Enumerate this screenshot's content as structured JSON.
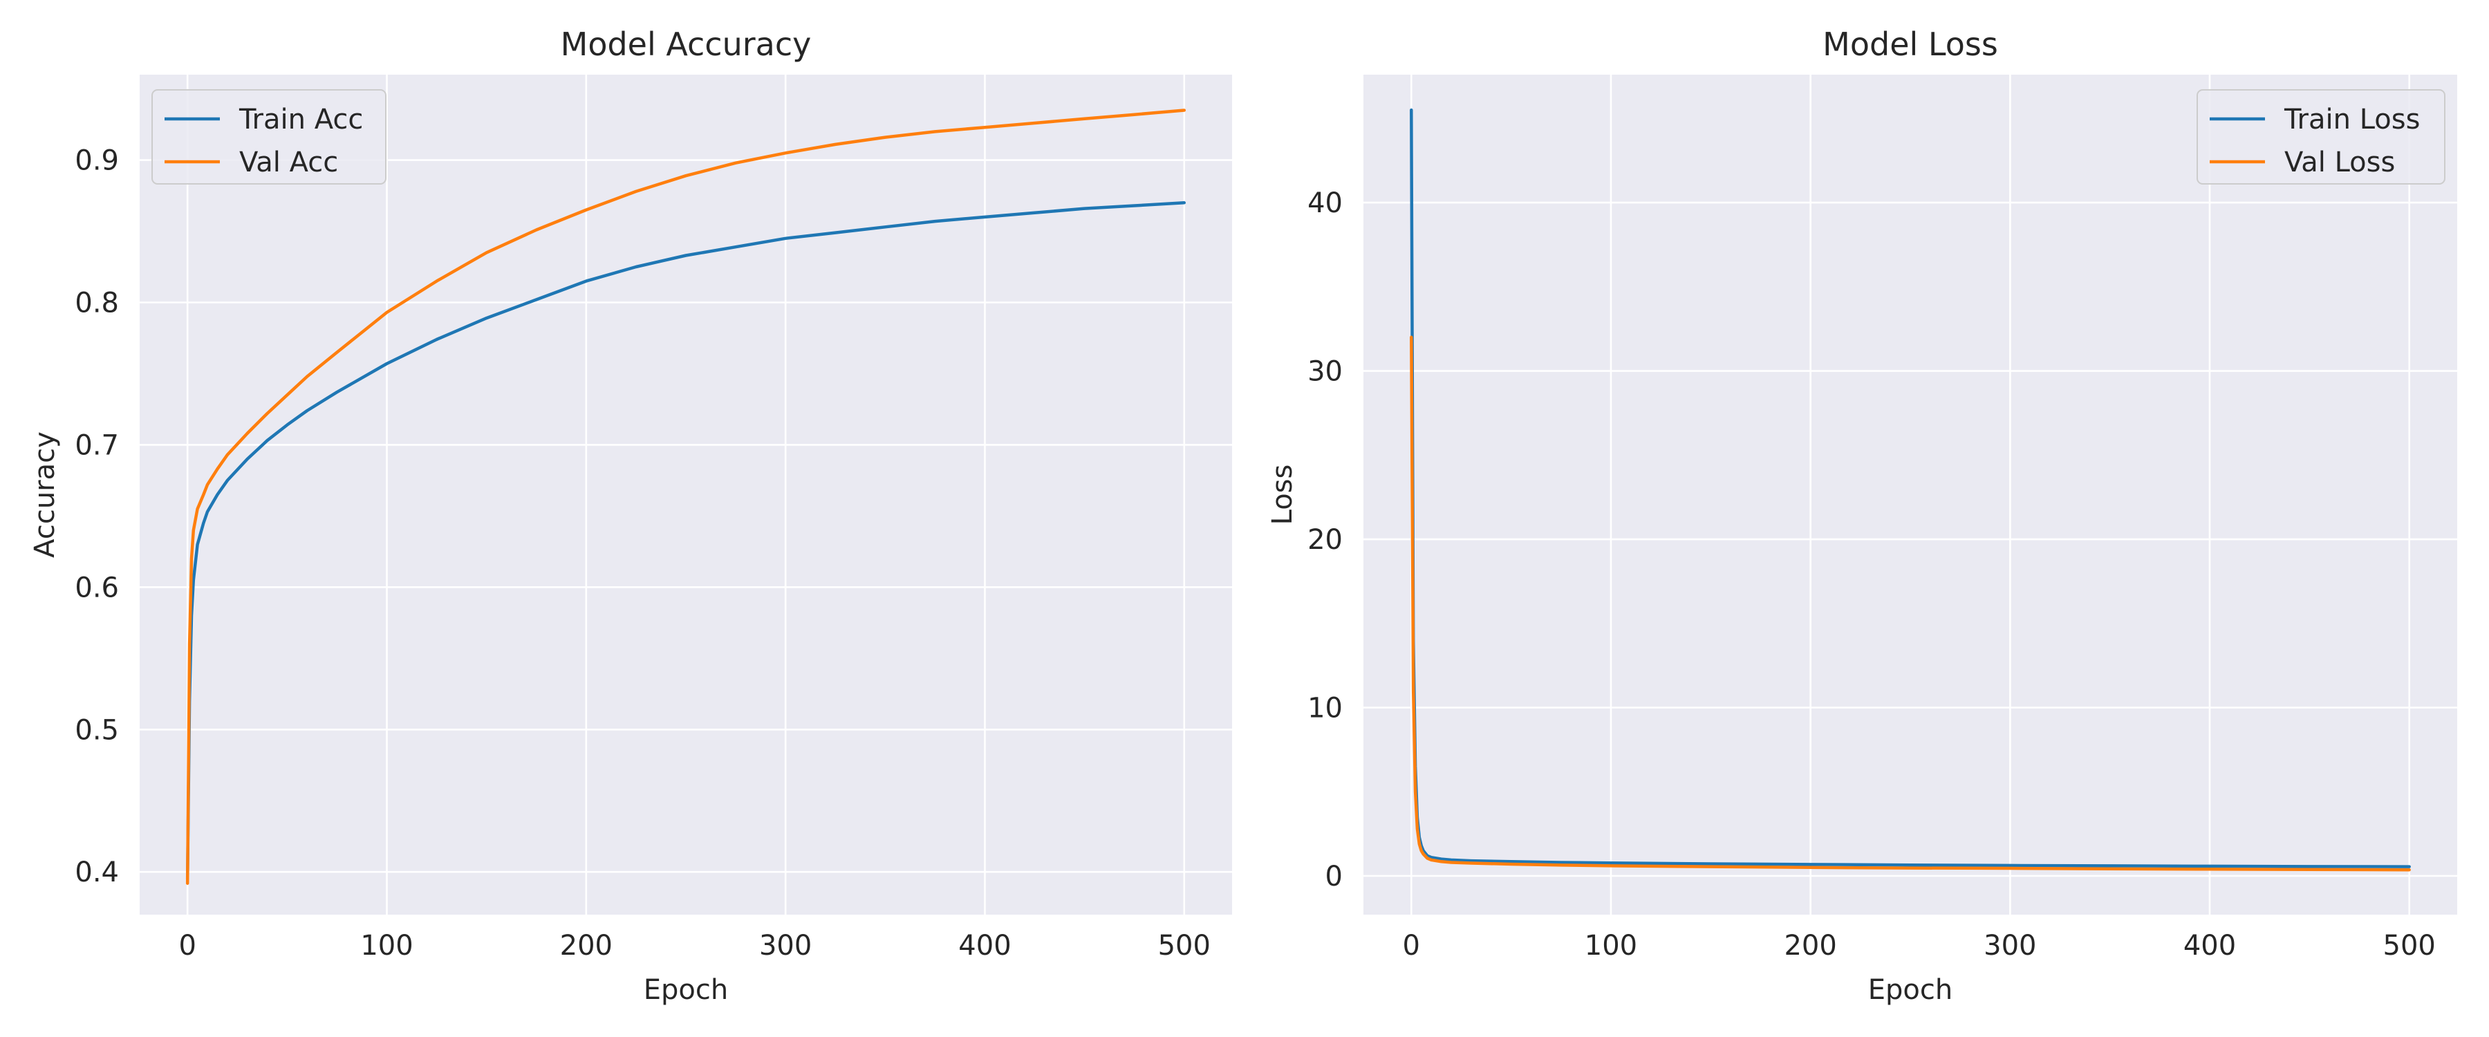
{
  "chart_data": [
    {
      "type": "line",
      "title": "Model Accuracy",
      "xlabel": "Epoch",
      "ylabel": "Accuracy",
      "xlim": [
        -24,
        524
      ],
      "ylim": [
        0.37,
        0.96
      ],
      "x_ticks": [
        0,
        100,
        200,
        300,
        400,
        500
      ],
      "y_ticks": [
        0.4,
        0.5,
        0.6,
        0.7,
        0.8,
        0.9
      ],
      "y_tick_labels": [
        "0.4",
        "0.5",
        "0.6",
        "0.7",
        "0.8",
        "0.9"
      ],
      "grid": true,
      "legend_position": "top-left",
      "series": [
        {
          "name": "Train Acc",
          "color": "#1f77b4",
          "x": [
            0,
            1,
            2,
            3,
            5,
            8,
            10,
            15,
            20,
            30,
            40,
            50,
            60,
            75,
            100,
            125,
            150,
            175,
            200,
            225,
            250,
            275,
            300,
            325,
            350,
            375,
            400,
            425,
            450,
            475,
            500
          ],
          "y": [
            0.395,
            0.52,
            0.58,
            0.605,
            0.63,
            0.645,
            0.653,
            0.665,
            0.675,
            0.69,
            0.703,
            0.714,
            0.724,
            0.737,
            0.757,
            0.774,
            0.789,
            0.802,
            0.815,
            0.825,
            0.833,
            0.839,
            0.845,
            0.849,
            0.853,
            0.857,
            0.86,
            0.863,
            0.866,
            0.868,
            0.87
          ]
        },
        {
          "name": "Val Acc",
          "color": "#ff7f0e",
          "x": [
            0,
            1,
            2,
            3,
            5,
            8,
            10,
            15,
            20,
            30,
            40,
            50,
            60,
            75,
            100,
            125,
            150,
            175,
            200,
            225,
            250,
            275,
            300,
            325,
            350,
            375,
            400,
            425,
            450,
            475,
            500
          ],
          "y": [
            0.392,
            0.56,
            0.62,
            0.64,
            0.655,
            0.665,
            0.672,
            0.683,
            0.693,
            0.708,
            0.722,
            0.735,
            0.748,
            0.765,
            0.793,
            0.815,
            0.835,
            0.851,
            0.865,
            0.878,
            0.889,
            0.898,
            0.905,
            0.911,
            0.916,
            0.92,
            0.923,
            0.926,
            0.929,
            0.932,
            0.935
          ]
        }
      ]
    },
    {
      "type": "line",
      "title": "Model Loss",
      "xlabel": "Epoch",
      "ylabel": "Loss",
      "xlim": [
        -24,
        524
      ],
      "ylim": [
        -2.3,
        47.6
      ],
      "x_ticks": [
        0,
        100,
        200,
        300,
        400,
        500
      ],
      "y_ticks": [
        0,
        10,
        20,
        30,
        40
      ],
      "y_tick_labels": [
        "0",
        "10",
        "20",
        "30",
        "40"
      ],
      "grid": true,
      "legend_position": "top-right",
      "series": [
        {
          "name": "Train Loss",
          "color": "#1f77b4",
          "x": [
            0,
            1,
            2,
            3,
            4,
            5,
            6,
            8,
            10,
            15,
            20,
            30,
            50,
            75,
            100,
            150,
            200,
            250,
            300,
            350,
            400,
            450,
            500
          ],
          "y": [
            45.5,
            14.0,
            6.5,
            3.5,
            2.3,
            1.8,
            1.5,
            1.2,
            1.1,
            1.0,
            0.95,
            0.9,
            0.85,
            0.8,
            0.77,
            0.72,
            0.68,
            0.65,
            0.62,
            0.6,
            0.58,
            0.56,
            0.55
          ]
        },
        {
          "name": "Val Loss",
          "color": "#ff7f0e",
          "x": [
            0,
            1,
            2,
            3,
            4,
            5,
            6,
            8,
            10,
            15,
            20,
            30,
            50,
            75,
            100,
            150,
            200,
            250,
            300,
            350,
            400,
            450,
            500
          ],
          "y": [
            32.0,
            11.0,
            5.0,
            2.8,
            1.9,
            1.5,
            1.3,
            1.05,
            0.95,
            0.85,
            0.8,
            0.76,
            0.7,
            0.64,
            0.6,
            0.55,
            0.5,
            0.47,
            0.45,
            0.42,
            0.4,
            0.38,
            0.36
          ]
        }
      ]
    }
  ]
}
